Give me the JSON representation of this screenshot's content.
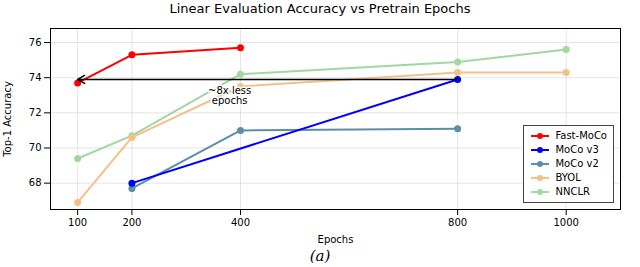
{
  "chart_data": {
    "type": "line",
    "title": "Linear Evaluation Accuracy vs Pretrain Epochs",
    "xlabel": "Epochs",
    "ylabel": "Top-1 Accuracy",
    "xlim": [
      50,
      1100
    ],
    "ylim": [
      66.5,
      76.8
    ],
    "xticks": [
      100,
      200,
      400,
      800,
      1000
    ],
    "yticks": [
      68,
      70,
      72,
      74,
      76
    ],
    "grid": true,
    "legend": "lower right",
    "series": [
      {
        "name": "Fast-MoCo",
        "color": "#ff0000",
        "marker": "circle",
        "x": [
          100,
          200,
          400
        ],
        "values": [
          73.7,
          75.3,
          75.7
        ]
      },
      {
        "name": "MoCo v3",
        "color": "#0000ff",
        "marker": "circle",
        "x": [
          200,
          800
        ],
        "values": [
          68.0,
          73.9
        ]
      },
      {
        "name": "MoCo v2",
        "color": "#5b8fa8",
        "marker": "circle",
        "x": [
          200,
          400,
          800
        ],
        "values": [
          67.7,
          71.0,
          71.1
        ]
      },
      {
        "name": "BYOL",
        "color": "#f4c08a",
        "marker": "circle",
        "x": [
          100,
          200,
          400,
          800,
          1000
        ],
        "values": [
          66.9,
          70.6,
          73.5,
          74.3,
          74.3
        ]
      },
      {
        "name": "NNCLR",
        "color": "#a0d8a0",
        "marker": "circle",
        "x": [
          100,
          200,
          400,
          800,
          1000
        ],
        "values": [
          69.4,
          70.7,
          74.2,
          74.9,
          75.6
        ]
      }
    ],
    "annotations": [
      {
        "text": "~8x less\nepochs",
        "x": 380,
        "y": 73.5
      }
    ],
    "arrows": [
      {
        "x_start": 800,
        "x_end": 100,
        "y": 73.9
      }
    ],
    "caption": "(a)"
  }
}
